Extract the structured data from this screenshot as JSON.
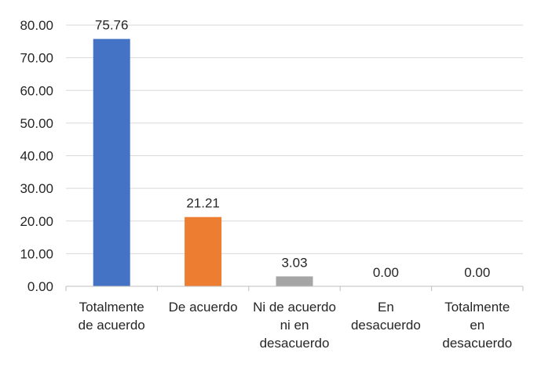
{
  "chart_data": {
    "type": "bar",
    "categories": [
      [
        "Totalmente",
        "de acuerdo"
      ],
      [
        "De acuerdo"
      ],
      [
        "Ni de acuerdo",
        "ni en",
        "desacuerdo"
      ],
      [
        "En",
        "desacuerdo"
      ],
      [
        "Totalmente",
        "en",
        "desacuerdo"
      ]
    ],
    "values": [
      75.76,
      21.21,
      3.03,
      0.0,
      0.0
    ],
    "data_labels": [
      "75.76",
      "21.21",
      "3.03",
      "0.00",
      "0.00"
    ],
    "bar_colors": [
      "#4472c4",
      "#ed7d31",
      "#a5a5a5",
      "#ffc000",
      "#5b9bd5"
    ],
    "ylim": [
      0,
      80
    ],
    "yticks": [
      "0.00",
      "10.00",
      "20.00",
      "30.00",
      "40.00",
      "50.00",
      "60.00",
      "70.00",
      "80.00"
    ],
    "grid": true,
    "legend": "none"
  }
}
